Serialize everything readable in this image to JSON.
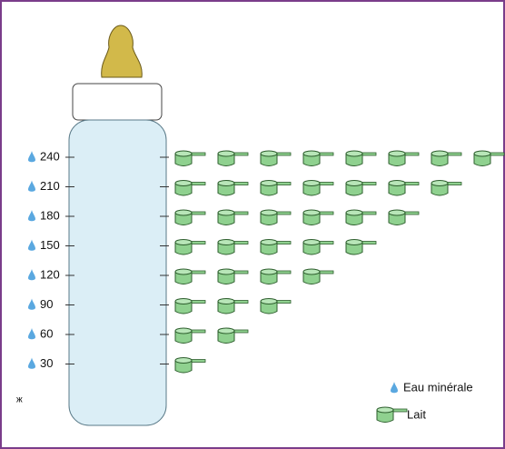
{
  "chart_data": {
    "type": "pictograph",
    "categories": [
      240,
      210,
      180,
      150,
      120,
      90,
      60,
      30
    ],
    "values": [
      8,
      7,
      6,
      5,
      4,
      3,
      2,
      1
    ],
    "legend": [
      "Eau minérale",
      "Lait"
    ],
    "color": "#8fd18f"
  }
}
